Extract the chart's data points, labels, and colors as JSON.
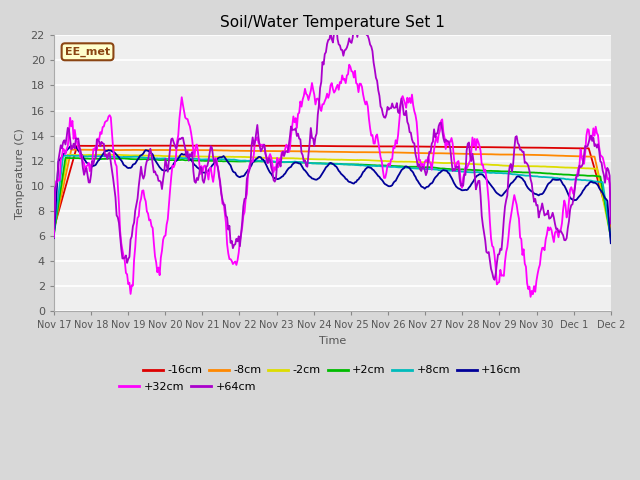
{
  "title": "Soil/Water Temperature Set 1",
  "xlabel": "Time",
  "ylabel": "Temperature (C)",
  "annotation": "EE_met",
  "ylim": [
    0,
    22
  ],
  "plot_bg_color": "#efefef",
  "fig_bg_color": "#d8d8d8",
  "series_order": [
    "-16cm",
    "-8cm",
    "-2cm",
    "+2cm",
    "+8cm",
    "+16cm",
    "+32cm",
    "+64cm"
  ],
  "series_colors": {
    "-16cm": "#dd0000",
    "-8cm": "#ff8800",
    "-2cm": "#dddd00",
    "+2cm": "#00bb00",
    "+8cm": "#00bbbb",
    "+16cm": "#000099",
    "+32cm": "#ff00ff",
    "+64cm": "#aa00cc"
  },
  "xtick_labels": [
    "Nov 17",
    "Nov 18",
    "Nov 19",
    "Nov 20",
    "Nov 21",
    "Nov 22",
    "Nov 23",
    "Nov 24",
    "Nov 25",
    "Nov 26",
    "Nov 27",
    "Nov 28",
    "Nov 29",
    "Nov 30",
    "Dec 1",
    "Dec 2"
  ],
  "n_points": 480,
  "legend_ncol_row1": 6,
  "legend_ncol_row2": 2
}
